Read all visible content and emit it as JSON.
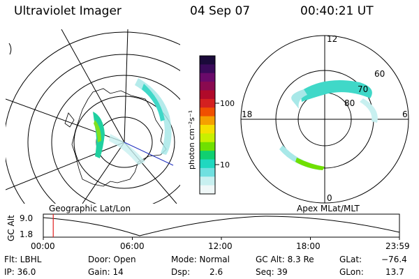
{
  "header": {
    "instrument": "Ultraviolet Imager",
    "date": "04 Sep 07",
    "time": "00:40:21 UT"
  },
  "colorbar": {
    "unit_label": "photon cm⁻²s⁻¹",
    "ticks": [
      "100",
      "10"
    ],
    "colors": [
      "#1a0a3a",
      "#3a0a5a",
      "#6a0a6a",
      "#8a0a50",
      "#b00a2a",
      "#d42020",
      "#f05000",
      "#f5a000",
      "#f5e000",
      "#c8f000",
      "#70e000",
      "#10d070",
      "#20d8c0",
      "#70e0e0",
      "#c8f0f0",
      "#f0f8f8"
    ]
  },
  "geo_map": {
    "projection_label": "Geographic Lat/Lon"
  },
  "polar_map": {
    "projection_label": "Apex MLat/MLT",
    "mlt_labels": {
      "top": "12",
      "left": "18",
      "right": "6",
      "bottom": "0"
    },
    "lat_labels": [
      "60",
      "70",
      "80"
    ]
  },
  "altitude_plot": {
    "ylabel": "GC Alt",
    "yticks": [
      "9.0",
      "1.8"
    ],
    "xticks": [
      "00:00",
      "06:00",
      "12:00",
      "18:00",
      "23:59"
    ],
    "marker_time_hours": 0.67
  },
  "info": {
    "flt": "Flt: LBHL",
    "ip": "IP: 36.0",
    "door": "Door: Open",
    "gain": "Gain: 14",
    "mode": "Mode: Normal",
    "dsp_label": "Dsp:",
    "dsp_value": "2.6",
    "gc_alt": "GC Alt: 8.3 Re",
    "seq": "Seq: 39",
    "glat_label": "GLat:",
    "glat_value": "−76.4",
    "glon_label": "GLon:",
    "glon_value": "13.7"
  }
}
